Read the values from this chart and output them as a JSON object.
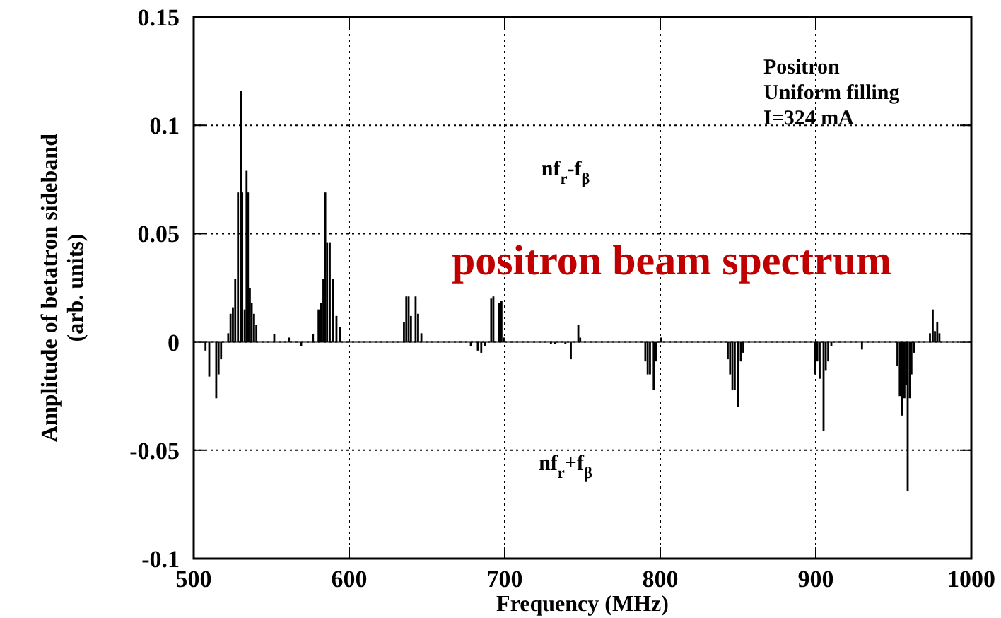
{
  "chart_data": {
    "type": "bar",
    "xlabel": "Frequency  (MHz)",
    "ylabel": "Amplitude of betatron sideband\n(arb. units)",
    "x": [
      507.6,
      510,
      514.5,
      516,
      517.6,
      522.2,
      523.7,
      525.2,
      526.7,
      528.5,
      530.3,
      531.2,
      532.8,
      534,
      534.9,
      536.1,
      537.3,
      538.8,
      540.3,
      551.8,
      561.2,
      569.1,
      576.7,
      580.3,
      581.8,
      583.4,
      584.6,
      585.8,
      587.5,
      589.7,
      591.8,
      594,
      635.2,
      636.7,
      638.2,
      639.7,
      642.7,
      644.3,
      646.4,
      678.2,
      682.7,
      684.9,
      687.3,
      691.3,
      692.7,
      696.4,
      697.9,
      699.5,
      729.7,
      732.2,
      739,
      742.5,
      747.3,
      748.5,
      790.4,
      791.9,
      793.4,
      795.8,
      797.3,
      800.5,
      843.4,
      844.9,
      846.4,
      847.9,
      850,
      851.8,
      853.4,
      899.5,
      901,
      902.5,
      905,
      906.4,
      908,
      910,
      929.7,
      952.5,
      954,
      955.5,
      957,
      958,
      959.1,
      960.4,
      961.5,
      963,
      973.4,
      975.2,
      976.6,
      978.1,
      979.5
    ],
    "values": [
      -0.004,
      -0.016,
      -0.026,
      -0.015,
      -0.008,
      0.004,
      0.013,
      0.016,
      0.029,
      0.069,
      0.116,
      0.069,
      0.015,
      0.079,
      0.069,
      0.025,
      0.018,
      0.013,
      0.008,
      0.0035,
      0.002,
      -0.002,
      0.0035,
      0.015,
      0.018,
      0.029,
      0.069,
      0.046,
      0.046,
      0.029,
      0.012,
      0.007,
      0.009,
      0.021,
      0.021,
      0.012,
      0.021,
      0.013,
      0.004,
      -0.002,
      -0.004,
      -0.005,
      -0.002,
      0.02,
      0.021,
      0.018,
      0.019,
      0.002,
      -0.001,
      -0.001,
      -0.001,
      -0.008,
      0.008,
      0.002,
      -0.009,
      -0.015,
      -0.015,
      -0.022,
      -0.009,
      0.002,
      -0.008,
      -0.015,
      -0.022,
      -0.022,
      -0.03,
      -0.009,
      -0.005,
      -0.015,
      -0.009,
      -0.017,
      -0.041,
      -0.013,
      -0.009,
      -0.002,
      -0.0035,
      -0.011,
      -0.025,
      -0.034,
      -0.026,
      -0.02,
      -0.069,
      -0.026,
      -0.015,
      -0.005,
      0.004,
      0.015,
      0.005,
      0.009,
      0.004
    ],
    "color": "#000000",
    "xlim": [
      500,
      1000
    ],
    "xticks": [
      500,
      600,
      700,
      800,
      900,
      1000
    ],
    "ylim": [
      -0.1,
      0.15
    ],
    "yticks": [
      -0.1,
      -0.05,
      0,
      0.05,
      0.1,
      0.15
    ],
    "grid": true,
    "annotations": [
      "Positron\nUniform filling\nI=324  mA",
      "nf$_{r}$-f$_{β}$",
      "nf$_{r}$+f$_{β}$",
      "positron beam spectrum"
    ]
  }
}
